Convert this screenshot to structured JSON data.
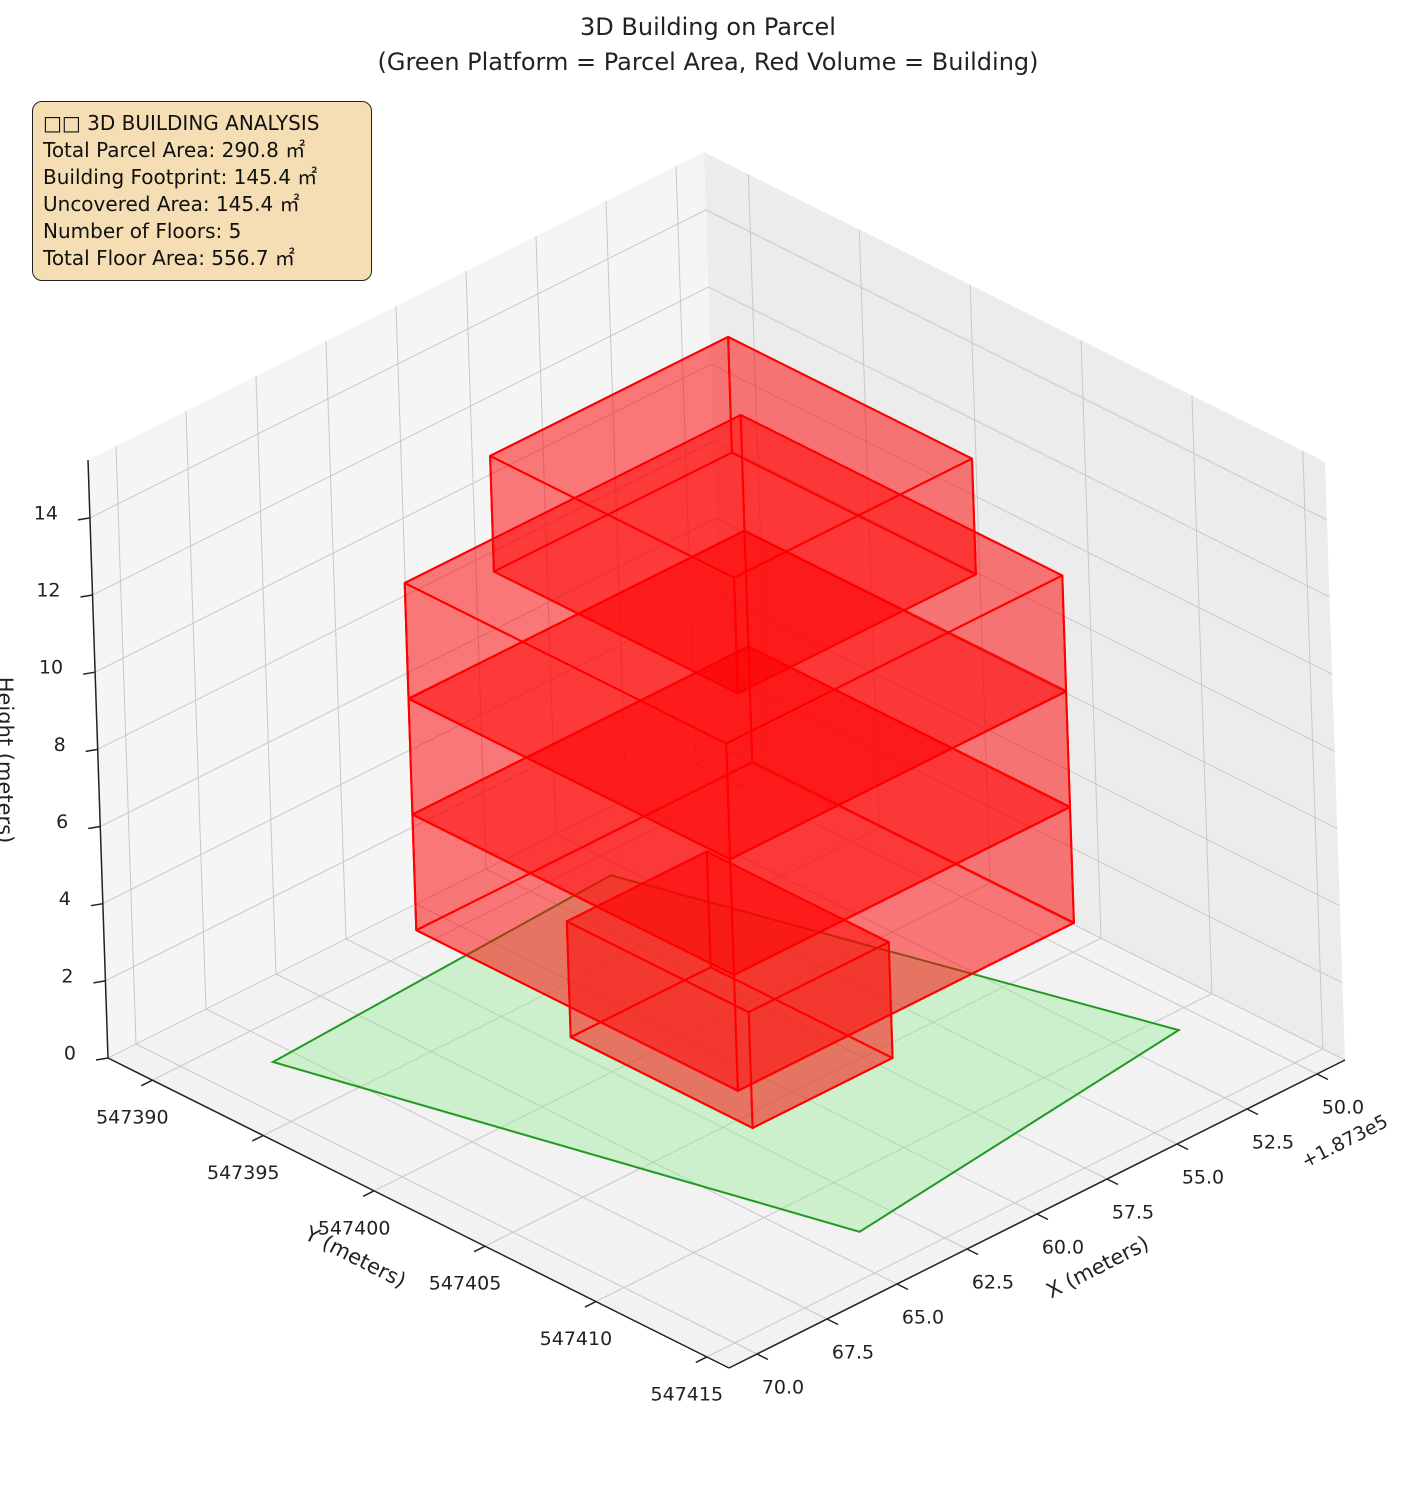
{
  "chart_data": {
    "type": "3d-boxes",
    "title": "3D Building on Parcel",
    "subtitle": "(Green Platform = Parcel Area, Red Volume = Building)",
    "xlabel": "X (meters)",
    "ylabel": "Y (meters)",
    "zlabel": "Height (meters)",
    "x_offset_label": "+1.873e5",
    "xlim": [
      49,
      71
    ],
    "ylim": [
      547388,
      547416
    ],
    "zlim": [
      0,
      15.5
    ],
    "xticks": [
      {
        "value": 50,
        "label": "50.0"
      },
      52.5,
      {
        "value": 55,
        "label": "55.0"
      },
      57.5,
      {
        "value": 60,
        "label": "60.0"
      },
      62.5,
      {
        "value": 65,
        "label": "65.0"
      },
      67.5,
      {
        "value": 70,
        "label": "70.0"
      }
    ],
    "yticks": [
      547390,
      547395,
      547400,
      547405,
      547410,
      547415
    ],
    "zticks": [
      0,
      2,
      4,
      6,
      8,
      10,
      12,
      14
    ],
    "grid": true,
    "parcel": {
      "x": [
        68.2,
        55.5,
        50.9,
        63.8
      ],
      "y": [
        547391.9,
        547391.1,
        547410.9,
        547412.8
      ],
      "color": "#90ee90",
      "edge_color": "#229922"
    },
    "box_color": "#ff0000",
    "boxes": [
      {
        "x": [
          57,
          62
        ],
        "y": [
          547397.5,
          547405.7
        ],
        "z": [
          0,
          3
        ]
      },
      {
        "x": [
          53,
          65
        ],
        "y": [
          547394.5,
          547409
        ],
        "z": [
          3,
          6
        ]
      },
      {
        "x": [
          53,
          65
        ],
        "y": [
          547394.5,
          547409
        ],
        "z": [
          6,
          9
        ]
      },
      {
        "x": [
          53,
          65
        ],
        "y": [
          547394.5,
          547409
        ],
        "z": [
          9,
          12
        ]
      },
      {
        "x": [
          54.5,
          63
        ],
        "y": [
          547396,
          547407
        ],
        "z": [
          12,
          15
        ]
      }
    ],
    "info_box": {
      "title": "□□ 3D BUILDING ANALYSIS",
      "lines": [
        "Total Parcel Area: 290.8 ㎡",
        "Building Footprint: 145.4 ㎡",
        "Uncovered Area: 145.4 ㎡",
        "Number of Floors: 5",
        "Total Floor Area: 556.7 ㎡"
      ]
    }
  }
}
